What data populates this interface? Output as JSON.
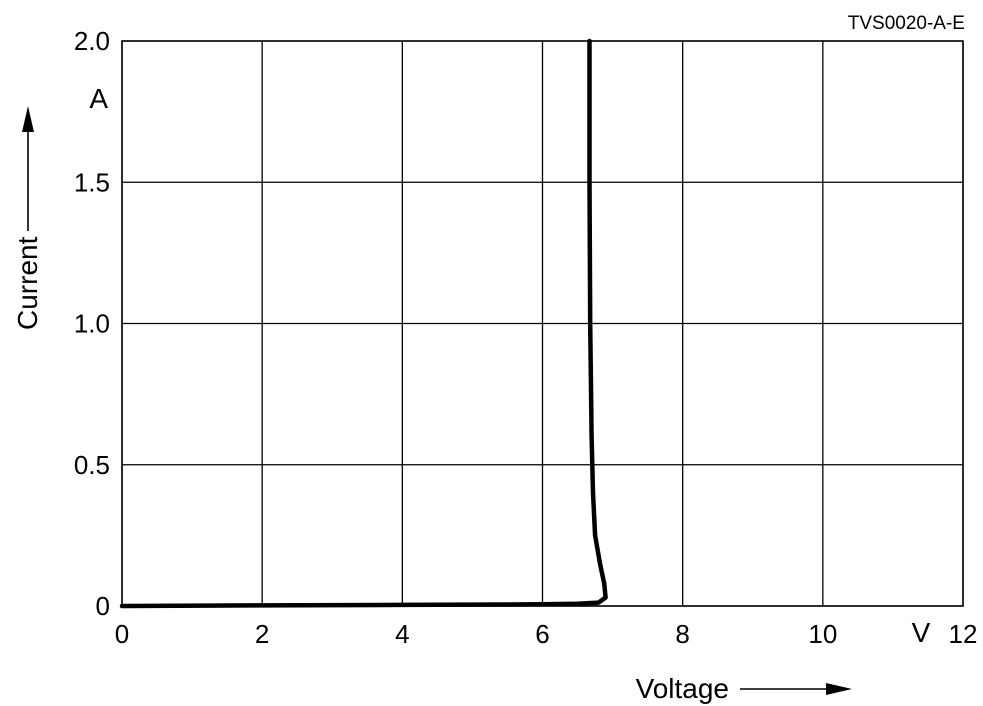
{
  "chart_data": {
    "type": "line",
    "figure_code": "TVS0020-A-E",
    "xlabel": "Voltage",
    "ylabel": "Current",
    "x_unit": "V",
    "y_unit": "A",
    "xlim": [
      0,
      12
    ],
    "ylim": [
      0,
      2.0
    ],
    "grid": true,
    "x_ticks": [
      {
        "value": 0,
        "label": "0"
      },
      {
        "value": 2,
        "label": "2"
      },
      {
        "value": 4,
        "label": "4"
      },
      {
        "value": 6,
        "label": "6"
      },
      {
        "value": 8,
        "label": "8"
      },
      {
        "value": 10,
        "label": "10"
      },
      {
        "value": 12,
        "label": "12"
      }
    ],
    "y_ticks": [
      {
        "value": 0,
        "label": "0"
      },
      {
        "value": 0.5,
        "label": "0.5"
      },
      {
        "value": 1.0,
        "label": "1.0"
      },
      {
        "value": 1.5,
        "label": "1.5"
      },
      {
        "value": 2.0,
        "label": "2.0"
      }
    ],
    "series": [
      {
        "x": [
          0,
          2,
          4,
          5,
          6,
          6.5,
          6.8,
          6.9,
          6.88,
          6.82,
          6.75,
          6.72,
          6.7,
          6.68,
          6.67,
          6.67
        ],
        "y": [
          0,
          0.002,
          0.004,
          0.005,
          0.006,
          0.008,
          0.012,
          0.03,
          0.08,
          0.15,
          0.25,
          0.4,
          0.6,
          1.0,
          1.5,
          2.0
        ]
      }
    ]
  }
}
